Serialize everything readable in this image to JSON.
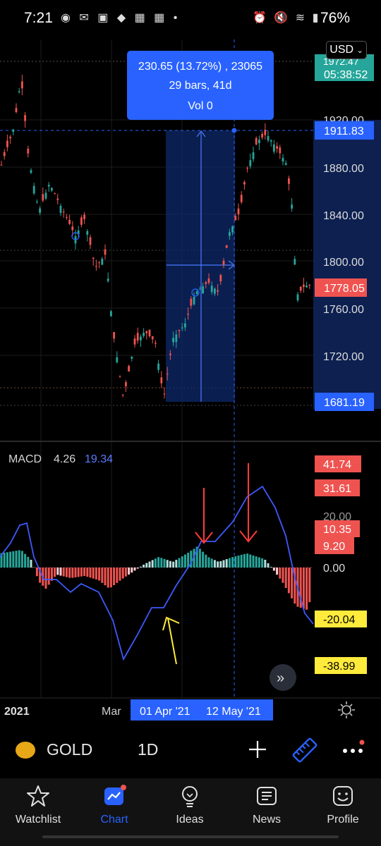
{
  "status_bar": {
    "time": "7:21",
    "left_icons": [
      "whatsapp-icon",
      "mail-icon",
      "linkedin-icon",
      "shield-icon",
      "calendar-icon",
      "grid-icon",
      "dot-icon"
    ],
    "right_icons": [
      "alarm-icon",
      "mute-icon",
      "wifi-icon",
      "signal-icon"
    ],
    "battery": "76%"
  },
  "header": {
    "currency": "USD"
  },
  "measure": {
    "line1": "230.65 (13.72%) , 23065",
    "line2": "29 bars, 41d",
    "line3": "Vol 0"
  },
  "price_axis": {
    "ticks": [
      "1880.00",
      "1840.00",
      "1800.00",
      "1760.00",
      "1720.00"
    ],
    "partial_top": "1972.47",
    "countdown": "05:38:52",
    "partial_1920": "1920.00",
    "measure_high": "1911.83",
    "last_price": "1778.05",
    "measure_low": "1681.19"
  },
  "macd": {
    "title": "MACD",
    "value1": "4.26",
    "value2": "19.34",
    "axis_labels": {
      "l1": "41.74",
      "l2": "31.61",
      "l3": "20.00",
      "l4": "10.35",
      "l5": "9.20",
      "l6": "0.00",
      "l7": "-20.04",
      "l8": "-38.99"
    }
  },
  "time_axis": {
    "year": "2021",
    "mar": "Mar",
    "range_start": "01 Apr '21",
    "range_end": "12 May '21"
  },
  "toolbar": {
    "symbol": "GOLD",
    "interval": "1D"
  },
  "nav": {
    "items": [
      {
        "label": "Watchlist",
        "icon": "star-icon"
      },
      {
        "label": "Chart",
        "icon": "chart-icon",
        "active": true
      },
      {
        "label": "Ideas",
        "icon": "lightbulb-icon"
      },
      {
        "label": "News",
        "icon": "news-icon"
      },
      {
        "label": "Profile",
        "icon": "profile-icon"
      }
    ]
  },
  "colors": {
    "up": "#26a69a",
    "down": "#ef5350",
    "accent": "#2962ff",
    "macd_line": "#3d5afe",
    "arrow_red": "#ff3b3b",
    "arrow_yellow": "#ffeb3b"
  }
}
